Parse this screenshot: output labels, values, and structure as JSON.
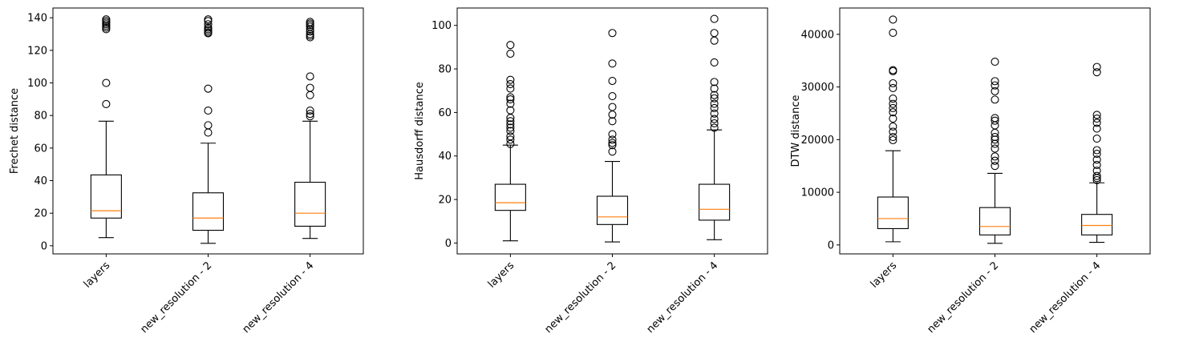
{
  "chart_data": [
    {
      "type": "box",
      "ylabel": "Frechet distance",
      "categories": [
        "layers",
        "new_resolution - 2",
        "new_resolution - 4"
      ],
      "ylim": [
        -5,
        146
      ],
      "yticks": [
        0,
        20,
        40,
        60,
        80,
        100,
        120,
        140
      ],
      "boxes": [
        {
          "whislo": 5,
          "q1": 17,
          "med": 21.5,
          "q3": 43.5,
          "whishi": 76.5,
          "fliers": [
            87,
            100,
            133,
            134,
            135,
            136,
            137,
            138,
            139
          ]
        },
        {
          "whislo": 1.5,
          "q1": 9.5,
          "med": 17,
          "q3": 32.5,
          "whishi": 63,
          "fliers": [
            69.5,
            74,
            83,
            96.5,
            130.5,
            131,
            132,
            133,
            134,
            136,
            138,
            139
          ]
        },
        {
          "whislo": 4.5,
          "q1": 12,
          "med": 20,
          "q3": 39,
          "whishi": 76.5,
          "fliers": [
            79.5,
            81,
            83,
            92.5,
            97,
            104,
            128,
            129,
            130,
            131.5,
            133,
            134.5,
            135.5,
            136.5,
            137.5
          ]
        }
      ]
    },
    {
      "type": "box",
      "ylabel": "Hausdorff distance",
      "categories": [
        "layers",
        "new_resolution - 2",
        "new_resolution - 4"
      ],
      "ylim": [
        -5,
        108
      ],
      "yticks": [
        0,
        20,
        40,
        60,
        80,
        100
      ],
      "boxes": [
        {
          "whislo": 1,
          "q1": 15,
          "med": 18.5,
          "q3": 27,
          "whishi": 45,
          "fliers": [
            45.5,
            47.5,
            49,
            51.5,
            53,
            54.5,
            56,
            57.5,
            61,
            64,
            66,
            67,
            71,
            73,
            75,
            87,
            91
          ]
        },
        {
          "whislo": 0.5,
          "q1": 8.5,
          "med": 12,
          "q3": 21.5,
          "whishi": 37.5,
          "fliers": [
            42,
            45,
            46,
            47.5,
            50,
            56,
            59,
            62.5,
            67.5,
            74.5,
            82.5,
            96.5
          ]
        },
        {
          "whislo": 1.5,
          "q1": 10.5,
          "med": 15.5,
          "q3": 27,
          "whishi": 52,
          "fliers": [
            53,
            55,
            57,
            59.5,
            62,
            64,
            66.5,
            68,
            71,
            74,
            83,
            93,
            96.5,
            103
          ]
        }
      ]
    },
    {
      "type": "box",
      "ylabel": "DTW distance",
      "categories": [
        "layers",
        "new_resolution - 2",
        "new_resolution - 4"
      ],
      "ylim": [
        -1700,
        45000
      ],
      "yticks": [
        0,
        10000,
        20000,
        30000,
        40000
      ],
      "boxes": [
        {
          "whislo": 600,
          "q1": 3100,
          "med": 5000,
          "q3": 9100,
          "whishi": 17900,
          "fliers": [
            19900,
            20500,
            21500,
            22500,
            24000,
            25200,
            26000,
            26800,
            27800,
            29800,
            30700,
            33000,
            33200,
            40300,
            42800
          ]
        },
        {
          "whislo": 300,
          "q1": 1900,
          "med": 3500,
          "q3": 7100,
          "whishi": 13600,
          "fliers": [
            15000,
            16000,
            16800,
            18300,
            19200,
            20000,
            20500,
            21300,
            22700,
            23600,
            24100,
            27600,
            29200,
            30300,
            31100,
            34800
          ]
        },
        {
          "whislo": 500,
          "q1": 1900,
          "med": 3700,
          "q3": 5800,
          "whishi": 11800,
          "fliers": [
            12300,
            12700,
            13100,
            14100,
            15200,
            16200,
            17300,
            18000,
            20200,
            22100,
            23200,
            24000,
            24700,
            32800,
            33800
          ]
        }
      ]
    }
  ],
  "colors": {
    "median": "#ff7f0e",
    "stroke": "#000000",
    "background": "#ffffff"
  }
}
